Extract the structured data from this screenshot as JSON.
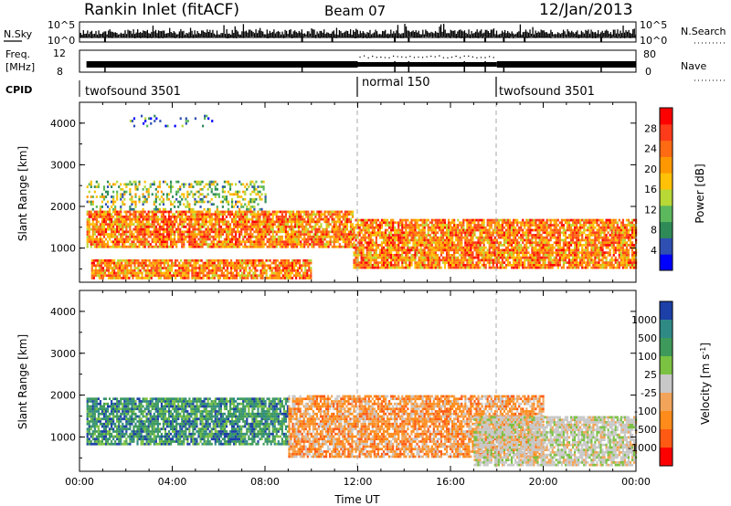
{
  "header": {
    "title": "Rankin Inlet (fitACF)",
    "beam": "Beam 07",
    "date": "12/Jan/2013"
  },
  "top_panels": {
    "nsky_label": "N.Sky",
    "nsearch_label": "N.Search",
    "nsky_ticks": [
      "10^5",
      "10^0"
    ],
    "nsearch_ticks": [
      "10^5",
      "10^0"
    ],
    "freq_label_1": "Freq.",
    "freq_label_2": "[MHz]",
    "freq_ticks": [
      "12",
      "8"
    ],
    "nave_label": "Nave",
    "nave_ticks": [
      "80",
      "0"
    ],
    "cpid_label": "CPID",
    "cpid_segments": [
      {
        "label": "twofsound 3501",
        "start": 0,
        "end": 12
      },
      {
        "label": "normal 150",
        "start": 12,
        "end": 18
      },
      {
        "label": "twofsound 3501",
        "start": 18,
        "end": 24
      }
    ]
  },
  "chart_data": [
    {
      "type": "heatmap",
      "title": "Power",
      "xlabel": "",
      "ylabel": "Slant Range [km]",
      "x_unit": "hours UT",
      "xlim": [
        0,
        24
      ],
      "ylim": [
        180,
        4500
      ],
      "yticks": [
        1000,
        2000,
        3000,
        4000
      ],
      "ytick_labels": [
        "1000",
        "2000",
        "3000",
        "4000"
      ],
      "colorbar": {
        "label": "Power [dB]",
        "tick_labels": [
          "4",
          "8",
          "12",
          "16",
          "20",
          "24",
          "28"
        ],
        "colors": [
          "#0000ff",
          "#2f4fb2",
          "#2e8b57",
          "#5cb85c",
          "#b8d836",
          "#ffc107",
          "#ff9800",
          "#ff6a13",
          "#ff3b1a",
          "#ff0000"
        ]
      },
      "dashed_lines_x": [
        12,
        18
      ],
      "regions": [
        {
          "x": [
            0.3,
            11.8
          ],
          "y": [
            1000,
            1900
          ],
          "level": "high",
          "description": "dense echo band"
        },
        {
          "x": [
            11.8,
            24
          ],
          "y": [
            500,
            1700
          ],
          "level": "high",
          "description": "dense echo band"
        },
        {
          "x": [
            0.5,
            10
          ],
          "y": [
            250,
            700
          ],
          "level": "high",
          "description": "near-range echoes"
        },
        {
          "x": [
            0.3,
            8
          ],
          "y": [
            1900,
            2600
          ],
          "level": "medium",
          "description": "sporadic echoes"
        },
        {
          "x": [
            2,
            6
          ],
          "y": [
            3900,
            4200
          ],
          "level": "low",
          "description": "far-range scatter"
        }
      ]
    },
    {
      "type": "heatmap",
      "title": "Velocity",
      "xlabel": "Time UT",
      "ylabel": "Slant Range [km]",
      "x_unit": "hours UT",
      "xlim": [
        0,
        24
      ],
      "ylim": [
        180,
        4500
      ],
      "xtick_labels": [
        "00:00",
        "04:00",
        "08:00",
        "12:00",
        "16:00",
        "20:00",
        "00:00"
      ],
      "yticks": [
        1000,
        2000,
        3000,
        4000
      ],
      "ytick_labels": [
        "1000",
        "2000",
        "3000",
        "4000"
      ],
      "colorbar": {
        "label": "Velocity [m s-1]",
        "label_main": "Velocity [m s",
        "label_sup": "-1",
        "label_close": "]",
        "tick_labels": [
          "1000",
          "500",
          "100",
          "25",
          "-25",
          "-100",
          "-500",
          "-1000"
        ],
        "colors": [
          "#1c3fa8",
          "#2f8a86",
          "#3e9a5a",
          "#7bc142",
          "#c8c8c8",
          "#f2a55a",
          "#ff8c1a",
          "#ff5a14",
          "#ff0000"
        ]
      },
      "dashed_lines_x": [
        12,
        18
      ],
      "regions": [
        {
          "x": [
            0.3,
            9
          ],
          "y": [
            800,
            1900
          ],
          "value": "positive",
          "description": "towards radar (green/blue)"
        },
        {
          "x": [
            9,
            20
          ],
          "y": [
            500,
            2000
          ],
          "value": "negative",
          "description": "away from radar (orange)"
        },
        {
          "x": [
            17,
            24
          ],
          "y": [
            300,
            1500
          ],
          "value": "near-zero",
          "description": "ground scatter (grey)"
        }
      ]
    }
  ],
  "colors": {
    "power_scale": [
      "#0000ff",
      "#2f4fb2",
      "#2e8b57",
      "#5cb85c",
      "#b8d836",
      "#ffc107",
      "#ff9800",
      "#ff6a13",
      "#ff3b1a",
      "#ff0000"
    ],
    "velocity_scale": [
      "#1c3fa8",
      "#2f8a86",
      "#3e9a5a",
      "#7bc142",
      "#c8c8c8",
      "#f2a55a",
      "#ff8c1a",
      "#ff5a14",
      "#ff0000"
    ]
  }
}
